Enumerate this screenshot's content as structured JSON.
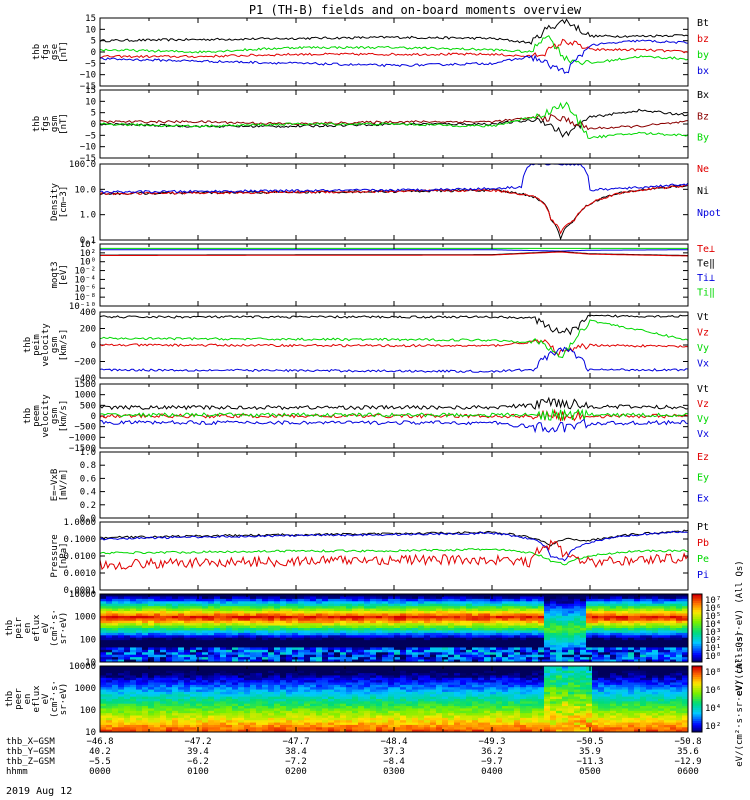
{
  "title": "P1 (TH-B) fields and on-board moments overview",
  "date_label": "2019 Aug 12",
  "colors": {
    "black": "#000000",
    "red": "#e00000",
    "green": "#00d800",
    "blue": "#0000dd",
    "darkred": "#8b0000"
  },
  "chart_data": [
    {
      "type": "line",
      "ylabel": [
        "thb",
        "fgs",
        "gse",
        "[nT]"
      ],
      "yticks": [
        "15",
        "10",
        "5",
        "0",
        "−5",
        "−10",
        "−15"
      ],
      "ylim": [
        -15,
        15
      ],
      "legend": [
        {
          "name": "Bt",
          "color": "#000000"
        },
        {
          "name": "bz",
          "color": "#e00000"
        },
        {
          "name": "by",
          "color": "#00d800"
        },
        {
          "name": "bx",
          "color": "#0000dd"
        }
      ],
      "series": [
        {
          "name": "Bt",
          "color": "#000000",
          "x": [
            0,
            1,
            2,
            3,
            4,
            4.4,
            4.55,
            4.75,
            5.0,
            5.5,
            6
          ],
          "values": [
            5,
            5.5,
            6,
            6.5,
            6,
            4,
            10,
            14,
            7,
            7,
            7.5
          ]
        },
        {
          "name": "bz",
          "color": "#e00000",
          "x": [
            0,
            1,
            2,
            3,
            4,
            4.4,
            4.55,
            4.75,
            5.0,
            5.5,
            6
          ],
          "values": [
            -2,
            -2,
            -1,
            -1,
            -1,
            -2,
            0,
            5,
            1,
            1,
            0
          ]
        },
        {
          "name": "by",
          "color": "#00d800",
          "x": [
            0,
            1,
            2,
            3,
            4,
            4.4,
            4.55,
            4.75,
            5.0,
            5.5,
            6
          ],
          "values": [
            1,
            0,
            2,
            2,
            1,
            0,
            8,
            -3,
            -5,
            -2,
            -3
          ]
        },
        {
          "name": "bx",
          "color": "#0000dd",
          "x": [
            0,
            1,
            2,
            3,
            4,
            4.4,
            4.55,
            4.75,
            5.0,
            5.5,
            6
          ],
          "values": [
            -3,
            -4,
            -5,
            -6,
            -5,
            -2,
            -5,
            -9,
            3,
            5,
            4
          ]
        }
      ]
    },
    {
      "type": "line",
      "ylabel": [
        "thb",
        "fgs",
        "gsm",
        "[nT]"
      ],
      "yticks": [
        "15",
        "10",
        "5",
        "0",
        "−5",
        "−10",
        "−15"
      ],
      "ylim": [
        -15,
        15
      ],
      "legend": [
        {
          "name": "Bx",
          "color": "#000000"
        },
        {
          "name": "Bz",
          "color": "#8b0000"
        },
        {
          "name": "By",
          "color": "#00d800"
        }
      ],
      "series": [
        {
          "name": "Bx",
          "color": "#000000",
          "x": [
            0,
            1,
            2,
            3,
            4,
            4.5,
            4.75,
            5.0,
            5.5,
            6
          ],
          "values": [
            0,
            -1,
            -1,
            0,
            0,
            2,
            -5,
            3,
            6,
            4
          ]
        },
        {
          "name": "Bz",
          "color": "#8b0000",
          "x": [
            0,
            1,
            2,
            3,
            4,
            4.5,
            4.75,
            5.0,
            5.5,
            6
          ],
          "values": [
            1,
            1,
            0,
            1,
            1,
            3,
            2,
            -2,
            -1,
            1
          ]
        },
        {
          "name": "By",
          "color": "#00d800",
          "x": [
            0,
            1,
            2,
            3,
            4,
            4.5,
            4.75,
            5.0,
            5.5,
            6
          ],
          "values": [
            0,
            -1,
            0,
            0,
            -1,
            4,
            9,
            -6,
            -4,
            -5
          ]
        }
      ]
    },
    {
      "type": "line",
      "ylabel": [
        "Density",
        "[cm−3]"
      ],
      "yticks": [
        "100.0",
        "10.0",
        "1.0",
        "0.1"
      ],
      "log_scale": true,
      "ylim": [
        0.05,
        300
      ],
      "legend": [
        {
          "name": "Ne",
          "color": "#e00000"
        },
        {
          "name": "Ni",
          "color": "#000000"
        },
        {
          "name": "Npot",
          "color": "#0000dd"
        }
      ],
      "series": [
        {
          "name": "Ni",
          "color": "#000000",
          "x": [
            0,
            1,
            2,
            3,
            4,
            4.4,
            4.6,
            4.7,
            4.85,
            5.0,
            5.5,
            6
          ],
          "values": [
            10,
            11,
            12,
            13,
            15,
            8,
            0.5,
            0.05,
            0.5,
            3,
            15,
            25
          ]
        },
        {
          "name": "Ne",
          "color": "#e00000",
          "x": [
            0,
            1,
            2,
            3,
            4,
            4.4,
            4.6,
            4.7,
            4.85,
            5.0,
            5.5,
            6
          ],
          "values": [
            10,
            11,
            12,
            13,
            15,
            8,
            0.5,
            0.12,
            0.5,
            3,
            15,
            25
          ]
        },
        {
          "name": "Npot",
          "color": "#0000dd",
          "x": [
            0,
            1,
            2,
            3,
            4,
            4.3,
            4.4,
            4.9,
            5.0,
            5.5,
            6
          ],
          "values": [
            12,
            13,
            14,
            15,
            18,
            22,
            300,
            300,
            15,
            20,
            30
          ]
        }
      ]
    },
    {
      "type": "line",
      "ylabel": [
        "moqt3",
        "[eV]"
      ],
      "yticks": [
        "10⁴",
        "10²",
        "10⁰",
        "10⁻²",
        "10⁻⁴",
        "10⁻⁶",
        "10⁻⁸",
        "10⁻¹⁰"
      ],
      "log_scale": true,
      "legend": [
        {
          "name": "Te⊥",
          "color": "#e00000"
        },
        {
          "name": "Te‖",
          "color": "#000000"
        },
        {
          "name": "Ti⊥",
          "color": "#0000dd"
        },
        {
          "name": "Ti‖",
          "color": "#00d800"
        }
      ],
      "series": [
        {
          "name": "Ti‖",
          "color": "#00d800",
          "x": [
            0,
            6
          ],
          "values": [
            3,
            3
          ]
        },
        {
          "name": "Ti⊥",
          "color": "#0000dd",
          "x": [
            0,
            4,
            4.7,
            5,
            6
          ],
          "values": [
            2.7,
            2.7,
            2.4,
            2.6,
            2.7
          ]
        },
        {
          "name": "Te‖",
          "color": "#000000",
          "x": [
            0,
            4,
            4.7,
            5,
            6
          ],
          "values": [
            1.5,
            1.6,
            2.3,
            1.8,
            1.4
          ]
        },
        {
          "name": "Te⊥",
          "color": "#e00000",
          "x": [
            0,
            4,
            4.7,
            5,
            6
          ],
          "values": [
            1.4,
            1.5,
            2.2,
            1.7,
            1.3
          ]
        }
      ]
    },
    {
      "type": "line",
      "ylabel": [
        "thb",
        "peim",
        "velocity",
        "gsm",
        "[km/s]"
      ],
      "yticks": [
        "400",
        "200",
        "0",
        "−200",
        "−400"
      ],
      "ylim": [
        -400,
        400
      ],
      "legend": [
        {
          "name": "Vt",
          "color": "#000000"
        },
        {
          "name": "Vz",
          "color": "#e00000"
        },
        {
          "name": "Vy",
          "color": "#00d800"
        },
        {
          "name": "Vx",
          "color": "#0000dd"
        }
      ],
      "series": [
        {
          "name": "Vt",
          "color": "#000000",
          "x": [
            0,
            4,
            4.4,
            4.6,
            4.8,
            5.0,
            6
          ],
          "values": [
            340,
            340,
            330,
            200,
            150,
            350,
            350
          ]
        },
        {
          "name": "Vz",
          "color": "#e00000",
          "x": [
            0,
            4,
            4.5,
            4.7,
            5.0,
            6
          ],
          "values": [
            0,
            -10,
            50,
            -100,
            0,
            -20
          ]
        },
        {
          "name": "Vy",
          "color": "#00d800",
          "x": [
            0,
            4,
            4.5,
            4.7,
            5.0,
            6
          ],
          "values": [
            80,
            60,
            30,
            -150,
            300,
            60
          ]
        },
        {
          "name": "Vx",
          "color": "#0000dd",
          "x": [
            0,
            4,
            4.4,
            4.6,
            4.8,
            5.0,
            6
          ],
          "values": [
            -300,
            -320,
            -300,
            -100,
            -50,
            -300,
            -300
          ]
        }
      ]
    },
    {
      "type": "line",
      "ylabel": [
        "thb",
        "peem",
        "velocity",
        "gsm",
        "[km/s]"
      ],
      "yticks": [
        "1500",
        "1000",
        "500",
        "0",
        "−500",
        "−1000",
        "−1500"
      ],
      "ylim": [
        -1500,
        1500
      ],
      "legend": [
        {
          "name": "Vt",
          "color": "#000000"
        },
        {
          "name": "Vz",
          "color": "#e00000"
        },
        {
          "name": "Vy",
          "color": "#00d800"
        },
        {
          "name": "Vx",
          "color": "#0000dd"
        }
      ],
      "series": [
        {
          "name": "Vt",
          "color": "#000000",
          "x": [
            0,
            4,
            4.4,
            4.6,
            4.8,
            5.0,
            6
          ],
          "values": [
            400,
            400,
            500,
            700,
            600,
            450,
            400
          ]
        },
        {
          "name": "Vz",
          "color": "#e00000",
          "x": [
            0,
            6
          ],
          "values": [
            0,
            0
          ]
        },
        {
          "name": "Vy",
          "color": "#00d800",
          "x": [
            0,
            6
          ],
          "values": [
            50,
            50
          ]
        },
        {
          "name": "Vx",
          "color": "#0000dd",
          "x": [
            0,
            4,
            4.6,
            5,
            6
          ],
          "values": [
            -300,
            -320,
            -600,
            -350,
            -300
          ]
        }
      ]
    },
    {
      "type": "line",
      "ylabel": [
        "E=−VxB",
        "[mV/m]"
      ],
      "yticks": [
        "1.0",
        "0.8",
        "0.6",
        "0.4",
        "0.2",
        "0.0"
      ],
      "ylim": [
        0,
        1
      ],
      "legend": [
        {
          "name": "Ez",
          "color": "#e00000"
        },
        {
          "name": "Ey",
          "color": "#00d800"
        },
        {
          "name": "Ex",
          "color": "#0000dd"
        }
      ],
      "series": []
    },
    {
      "type": "line",
      "ylabel": [
        "Pressure",
        "[nPa]"
      ],
      "yticks": [
        "1.0000",
        "0.1000",
        "0.0100",
        "0.0010",
        "0.0001"
      ],
      "log_scale": true,
      "ylim": [
        0.0001,
        1
      ],
      "legend": [
        {
          "name": "Pt",
          "color": "#000000"
        },
        {
          "name": "Pb",
          "color": "#e00000"
        },
        {
          "name": "Pe",
          "color": "#00d800"
        },
        {
          "name": "Pi",
          "color": "#0000dd"
        }
      ],
      "series": [
        {
          "name": "Pt",
          "color": "#000000",
          "x": [
            0,
            1,
            2,
            3,
            4,
            4.4,
            4.6,
            4.75,
            5.0,
            5.5,
            6
          ],
          "values": [
            0.12,
            0.15,
            0.18,
            0.2,
            0.25,
            0.12,
            0.04,
            0.1,
            0.08,
            0.2,
            0.3
          ]
        },
        {
          "name": "Pi",
          "color": "#0000dd",
          "x": [
            0,
            1,
            2,
            3,
            4,
            4.4,
            4.6,
            4.75,
            5.0,
            5.5,
            6
          ],
          "values": [
            0.1,
            0.13,
            0.16,
            0.18,
            0.22,
            0.1,
            0.01,
            0.005,
            0.06,
            0.18,
            0.28
          ]
        },
        {
          "name": "Pe",
          "color": "#00d800",
          "x": [
            0,
            1,
            2,
            3,
            4,
            4.4,
            4.6,
            4.75,
            5.0,
            5.5,
            6
          ],
          "values": [
            0.015,
            0.017,
            0.02,
            0.02,
            0.025,
            0.015,
            0.005,
            0.003,
            0.01,
            0.02,
            0.02
          ]
        },
        {
          "name": "Pb",
          "color": "#e00000",
          "x": [
            0,
            1,
            2,
            3,
            4,
            4.4,
            4.6,
            4.75,
            5.0,
            5.5,
            6
          ],
          "values": [
            0.003,
            0.004,
            0.005,
            0.006,
            0.006,
            0.004,
            0.05,
            0.01,
            0.004,
            0.006,
            0.008
          ]
        }
      ]
    },
    {
      "type": "heatmap",
      "ylabel": [
        "thb",
        "peir",
        "en",
        "eflux",
        "eV",
        "(cm²·s·",
        "sr·eV)"
      ],
      "yticks": [
        "10000",
        "1000",
        "100",
        "10"
      ],
      "log_scale": true,
      "colorbar_ticks": [
        "10⁷",
        "10⁶",
        "10⁵",
        "10⁴",
        "10³",
        "10²",
        "10¹",
        "10⁰"
      ],
      "colorbar_label": "eV/(cm²·s·sr·eV) (All Qs)"
    },
    {
      "type": "heatmap",
      "ylabel": [
        "thb",
        "peer",
        "en",
        "eflux",
        "eV",
        "(cm²·s·",
        "sr·eV)"
      ],
      "yticks": [
        "10000",
        "1000",
        "100",
        "10"
      ],
      "log_scale": true,
      "colorbar_ticks": [
        "10⁸",
        "10⁶",
        "10⁴",
        "10²"
      ],
      "colorbar_label": "eV/(cm²·s·sr·eV) (All Qs)"
    }
  ],
  "x_axis": {
    "x_range_hours": [
      0,
      6
    ],
    "rows": [
      {
        "label": "thb_X−GSM",
        "values": [
          "−46.8",
          "−47.2",
          "−47.7",
          "−48.4",
          "−49.3",
          "−50.5",
          "−50.8"
        ]
      },
      {
        "label": "thb_Y−GSM",
        "values": [
          "40.2",
          "39.4",
          "38.4",
          "37.3",
          "36.2",
          "35.9",
          "35.6"
        ]
      },
      {
        "label": "thb_Z−GSM",
        "values": [
          "−5.5",
          "−6.2",
          "−7.2",
          "−8.4",
          "−9.7",
          "−11.3",
          "−12.9"
        ]
      },
      {
        "label": "hhmm",
        "values": [
          "0000",
          "0100",
          "0200",
          "0300",
          "0400",
          "0500",
          "0600"
        ]
      }
    ]
  }
}
